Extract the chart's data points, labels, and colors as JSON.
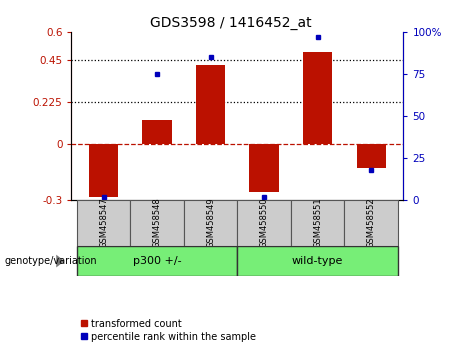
{
  "title": "GDS3598 / 1416452_at",
  "samples": [
    "GSM458547",
    "GSM458548",
    "GSM458549",
    "GSM458550",
    "GSM458551",
    "GSM458552"
  ],
  "red_values": [
    -0.285,
    0.13,
    0.425,
    -0.255,
    0.49,
    -0.13
  ],
  "blue_values": [
    2.0,
    75.0,
    85.0,
    2.0,
    97.0,
    18.0
  ],
  "group1_label": "p300 +/-",
  "group2_label": "wild-type",
  "group_label": "genotype/variation",
  "ylim_left": [
    -0.3,
    0.6
  ],
  "ylim_right": [
    0,
    100
  ],
  "yticks_left": [
    -0.3,
    0.0,
    0.225,
    0.45,
    0.6
  ],
  "ytick_labels_left": [
    "-0.3",
    "0",
    "0.225",
    "0.45",
    "0.6"
  ],
  "yticks_right": [
    0,
    25,
    50,
    75,
    100
  ],
  "ytick_labels_right": [
    "0",
    "25",
    "50",
    "75",
    "100%"
  ],
  "hlines": [
    0.45,
    0.225
  ],
  "zero_line": 0.0,
  "red_color": "#BB1100",
  "blue_color": "#0000BB",
  "bar_width": 0.55,
  "sample_box_color": "#CCCCCC",
  "group_box_color": "#77EE77",
  "legend_items": [
    "transformed count",
    "percentile rank within the sample"
  ]
}
